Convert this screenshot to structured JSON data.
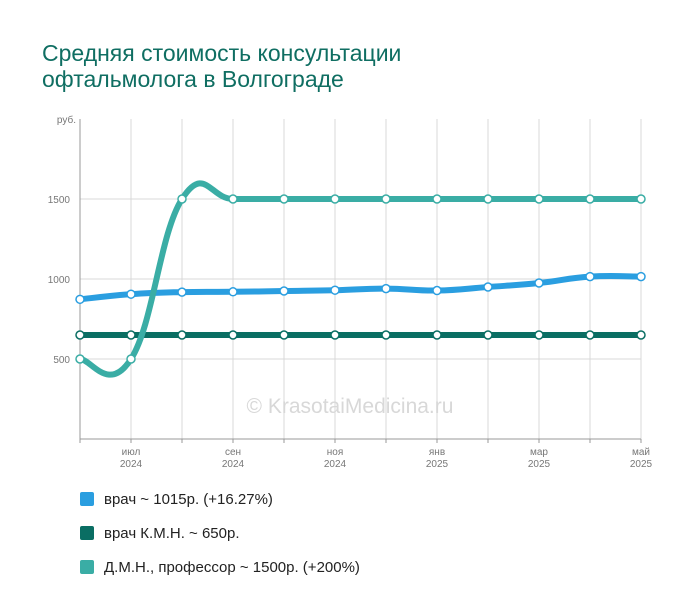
{
  "chart_data": {
    "type": "line",
    "title_lines": [
      "Средняя стоимость консультации",
      "офтальмолога в Волгограде"
    ],
    "ylabel": "руб.",
    "ylim": [
      0,
      2000
    ],
    "yticks": [
      500,
      1000,
      1500
    ],
    "grid": true,
    "x_labels": [
      {
        "index": 1,
        "month": "июл",
        "year": "2024"
      },
      {
        "index": 3,
        "month": "сен",
        "year": "2024"
      },
      {
        "index": 5,
        "month": "ноя",
        "year": "2024"
      },
      {
        "index": 7,
        "month": "янв",
        "year": "2025"
      },
      {
        "index": 9,
        "month": "мар",
        "year": "2025"
      },
      {
        "index": 11,
        "month": "май",
        "year": "2025"
      }
    ],
    "x": [
      "2024-06",
      "2024-07",
      "2024-08",
      "2024-09",
      "2024-10",
      "2024-11",
      "2024-12",
      "2025-01",
      "2025-02",
      "2025-03",
      "2025-04",
      "2025-05"
    ],
    "series": [
      {
        "name": "врач",
        "color": "#2a9ee0",
        "values": [
          873,
          905,
          918,
          920,
          925,
          930,
          940,
          928,
          950,
          975,
          1015,
          1015
        ]
      },
      {
        "name": "врач К.М.Н.",
        "color": "#0a6e63",
        "values": [
          650,
          650,
          650,
          650,
          650,
          650,
          650,
          650,
          650,
          650,
          650,
          650
        ]
      },
      {
        "name": "Д.М.Н., профессор",
        "color": "#3aada5",
        "values": [
          500,
          500,
          1500,
          1500,
          1500,
          1500,
          1500,
          1500,
          1500,
          1500,
          1500,
          1500
        ]
      }
    ],
    "legend_position": "bottom",
    "legend": [
      {
        "label": "врач ~ 1015р. (+16.27%)",
        "color": "#2a9ee0"
      },
      {
        "label": "врач К.М.Н. ~ 650р.",
        "color": "#0a6e63"
      },
      {
        "label": "Д.М.Н., профессор ~ 1500р. (+200%)",
        "color": "#3aada5"
      }
    ]
  },
  "watermark": "© KrasotaiMedicina.ru"
}
